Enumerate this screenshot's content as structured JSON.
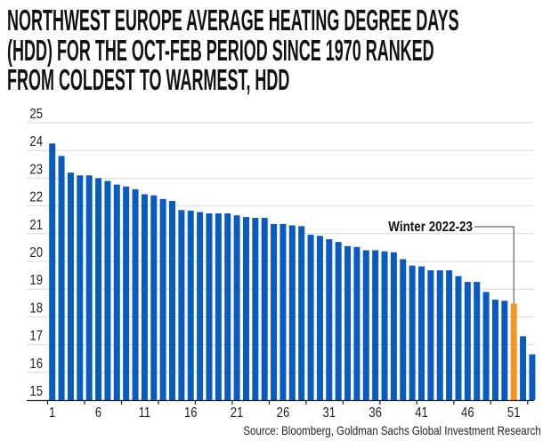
{
  "chart_data": {
    "type": "bar",
    "title_lines": [
      "NORTHWEST EUROPE AVERAGE HEATING DEGREE DAYS",
      "(HDD) FOR THE OCT-FEB PERIOD SINCE 1970 RANKED",
      "FROM COLDEST TO WARMEST, HDD"
    ],
    "xlabel": "",
    "ylabel": "",
    "ylim": [
      15,
      25
    ],
    "yticks": [
      "15",
      "16",
      "17",
      "18",
      "19",
      "20",
      "21",
      "22",
      "23",
      "24",
      "25"
    ],
    "xtick_labels": [
      "1",
      "6",
      "11",
      "16",
      "21",
      "26",
      "31",
      "36",
      "41",
      "46",
      "51"
    ],
    "grid": true,
    "categories": [
      1,
      2,
      3,
      4,
      5,
      6,
      7,
      8,
      9,
      10,
      11,
      12,
      13,
      14,
      15,
      16,
      17,
      18,
      19,
      20,
      21,
      22,
      23,
      24,
      25,
      26,
      27,
      28,
      29,
      30,
      31,
      32,
      33,
      34,
      35,
      36,
      37,
      38,
      39,
      40,
      41,
      42,
      43,
      44,
      45,
      46,
      47,
      48,
      49,
      50,
      51,
      52,
      53
    ],
    "values": [
      24.25,
      23.8,
      23.2,
      23.1,
      23.1,
      23.0,
      22.9,
      22.77,
      22.7,
      22.6,
      22.42,
      22.38,
      22.25,
      22.18,
      21.85,
      21.83,
      21.78,
      21.73,
      21.73,
      21.73,
      21.66,
      21.6,
      21.57,
      21.57,
      21.35,
      21.35,
      21.3,
      21.27,
      20.96,
      20.92,
      20.8,
      20.7,
      20.55,
      20.52,
      20.4,
      20.4,
      20.36,
      20.33,
      20.08,
      19.85,
      19.82,
      19.68,
      19.68,
      19.68,
      19.47,
      19.26,
      19.26,
      18.9,
      18.62,
      18.58,
      18.48,
      17.3,
      16.65
    ],
    "highlight_index": 51,
    "annotation": "Winter 2022-23",
    "colors": {
      "bar": "#0a5bbf",
      "highlight": "#f7931e",
      "grid": "#d9d9d9",
      "axis": "#222222"
    }
  },
  "source": "Source: Bloomberg, Goldman Sachs Global Investment Research"
}
